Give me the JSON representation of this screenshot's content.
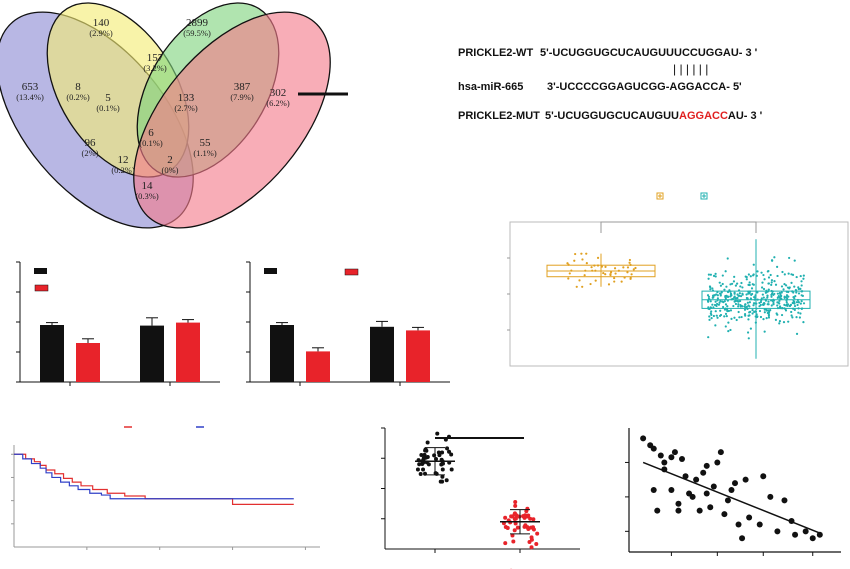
{
  "venn": {
    "regions": [
      {
        "count": "140",
        "pct": "(2.9%)"
      },
      {
        "count": "2899",
        "pct": "(59.5%)"
      },
      {
        "count": "157",
        "pct": "(3.2%)"
      },
      {
        "count": "8",
        "pct": "(0.2%)"
      },
      {
        "count": "387",
        "pct": "(7.9%)"
      },
      {
        "count": "653",
        "pct": "(13.4%)"
      },
      {
        "count": "5",
        "pct": "(0.1%)"
      },
      {
        "count": "133",
        "pct": "(2.7%)"
      },
      {
        "count": "302",
        "pct": "(6.2%)"
      },
      {
        "count": "6",
        "pct": "(0.1%)"
      },
      {
        "count": "96",
        "pct": "(2%)"
      },
      {
        "count": "55",
        "pct": "(1.1%)"
      },
      {
        "count": "12",
        "pct": "(0.2%)"
      },
      {
        "count": "2",
        "pct": "(0%)"
      },
      {
        "count": "14",
        "pct": "(0.3%)"
      }
    ],
    "colors": [
      "#8d8ad4",
      "#f3ec74",
      "#7fd37e",
      "#f47a8a"
    ]
  },
  "sequences": {
    "wt_label": "PRICKLE2-WT",
    "wt_seq": "5'-UCUGGUGCUCAUGUUUCCUGGAU- 3 '",
    "pairing": "| | | | | |",
    "mir_label": "hsa-miR-665",
    "mir_seq": "3'-UCCCCGGAGUCGG-AGGACCA- 5'",
    "mut_label": "PRICKLE2-MUT",
    "mut_prefix": "5'-UCUGGUGCUCAUGUU",
    "mut_highlight": "AGGACC",
    "mut_suffix": "AU- 3 '",
    "highlight_color": "#e02020"
  },
  "chart_data": [
    {
      "type": "bar",
      "categories": [
        "",
        ""
      ],
      "series": [
        {
          "color": "#111111",
          "values": [
            0.95,
            0.94
          ],
          "errors": [
            0.04,
            0.13
          ]
        },
        {
          "color": "#e8232a",
          "values": [
            0.65,
            0.99
          ],
          "errors": [
            0.07,
            0.05
          ]
        }
      ],
      "ylim": [
        0,
        2
      ]
    },
    {
      "type": "bar",
      "categories": [
        "",
        ""
      ],
      "series": [
        {
          "color": "#111111",
          "values": [
            0.95,
            0.92
          ],
          "errors": [
            0.04,
            0.09
          ]
        },
        {
          "color": "#e8232a",
          "values": [
            0.51,
            0.86
          ],
          "errors": [
            0.06,
            0.05
          ]
        }
      ],
      "ylim": [
        0,
        2
      ]
    },
    {
      "type": "box",
      "series": [
        {
          "color": "#e0a020",
          "n": 50,
          "q1": 0.62,
          "median": 0.66,
          "q3": 0.7,
          "low": 0.55,
          "high": 0.78
        },
        {
          "color": "#20b0b0",
          "n": 420,
          "q1": 0.4,
          "median": 0.46,
          "q3": 0.52,
          "low": 0.05,
          "high": 0.88
        }
      ],
      "ylim": [
        0,
        1
      ]
    },
    {
      "type": "line",
      "series": [
        {
          "color": "#e23030",
          "x": [
            0,
            4,
            7,
            9,
            11,
            14,
            17,
            20,
            23,
            27,
            32,
            38,
            45,
            55,
            70,
            75,
            96
          ],
          "y": [
            1.0,
            0.95,
            0.92,
            0.88,
            0.83,
            0.79,
            0.74,
            0.7,
            0.66,
            0.62,
            0.58,
            0.55,
            0.52,
            0.52,
            0.52,
            0.46,
            0.46
          ]
        },
        {
          "color": "#3040c8",
          "x": [
            0,
            3,
            6,
            9,
            11,
            13,
            16,
            19,
            22,
            26,
            30,
            33,
            40,
            50,
            60,
            70,
            96
          ],
          "y": [
            1.0,
            0.95,
            0.9,
            0.85,
            0.8,
            0.75,
            0.7,
            0.66,
            0.62,
            0.58,
            0.56,
            0.52,
            0.52,
            0.52,
            0.52,
            0.52,
            0.52
          ]
        }
      ],
      "xlim": [
        0,
        105
      ],
      "ylim": [
        0,
        1.1
      ]
    },
    {
      "type": "scatter",
      "series": [
        {
          "color": "#111111",
          "n": 45,
          "mean": 2.9,
          "sd": 0.45,
          "jitter": 0.55
        },
        {
          "color": "#e8232a",
          "n": 45,
          "mean": 0.9,
          "sd": 0.4,
          "jitter": 0.55
        }
      ],
      "ylim": [
        0,
        4
      ]
    },
    {
      "type": "scatter",
      "x": [
        1.2,
        1.4,
        1.5,
        1.7,
        1.8,
        2.0,
        2.1,
        1.5,
        1.8,
        2.2,
        2.4,
        2.6,
        2.8,
        3.0,
        3.2,
        3.4,
        3.6,
        3.8,
        4.0,
        4.2,
        2.3,
        2.5,
        2.7,
        2.9,
        3.1,
        3.3,
        3.5,
        3.7,
        3.9,
        4.5,
        4.8,
        5.0,
        5.2,
        5.5,
        5.8,
        6.0,
        6.2,
        2.0,
        3.0,
        4.1,
        1.6,
        2.2,
        5.4,
        4.6
      ],
      "y": [
        3.7,
        3.5,
        3.4,
        3.2,
        3.0,
        3.15,
        3.3,
        2.2,
        2.8,
        1.8,
        2.6,
        2.0,
        1.6,
        2.9,
        2.3,
        3.3,
        1.9,
        2.4,
        0.8,
        1.4,
        3.1,
        2.1,
        2.5,
        2.7,
        1.7,
        3.0,
        1.5,
        2.2,
        1.2,
        1.2,
        2.0,
        1.0,
        1.9,
        0.9,
        1.0,
        0.8,
        0.9,
        2.2,
        2.1,
        2.5,
        1.6,
        1.6,
        1.3,
        2.6
      ],
      "trend": [
        [
          1.2,
          3.0
        ],
        [
          6.2,
          0.95
        ]
      ],
      "xlim": [
        0.8,
        6.8
      ],
      "ylim": [
        0.4,
        4.0
      ]
    }
  ]
}
